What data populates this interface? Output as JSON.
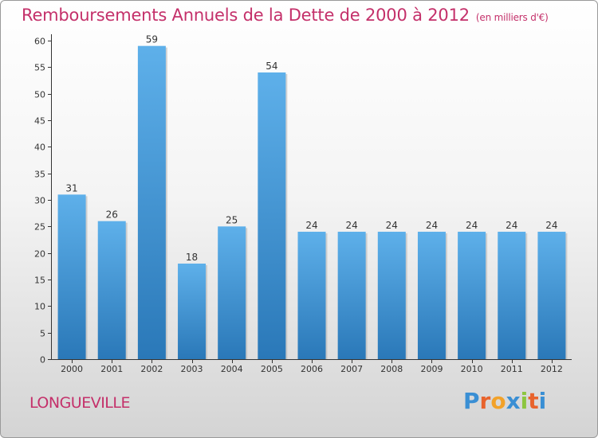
{
  "title": "Remboursements Annuels de la Dette de 2000 à 2012",
  "subtitle": "(en milliers d'€)",
  "commune": "LONGUEVILLE",
  "logo": {
    "letters": [
      "P",
      "r",
      "o",
      "x",
      "i",
      "t",
      "i"
    ],
    "colors": [
      "#3a8fd4",
      "#e8632c",
      "#f2a22a",
      "#3a8fd4",
      "#8cc63f",
      "#e8632c",
      "#3a8fd4"
    ]
  },
  "colors": {
    "title": "#c4306a",
    "bar_light": "#5eb0ea",
    "bar_dark": "#2a78b8"
  },
  "chart_data": {
    "type": "bar",
    "categories": [
      "2000",
      "2001",
      "2002",
      "2003",
      "2004",
      "2005",
      "2006",
      "2007",
      "2008",
      "2009",
      "2010",
      "2011",
      "2012"
    ],
    "values": [
      31,
      26,
      59,
      18,
      25,
      54,
      24,
      24,
      24,
      24,
      24,
      24,
      24
    ],
    "ylim": [
      0,
      60
    ],
    "yticks": [
      0,
      5,
      10,
      15,
      20,
      25,
      30,
      35,
      40,
      45,
      50,
      55,
      60
    ],
    "grid": false,
    "legend": "none"
  }
}
